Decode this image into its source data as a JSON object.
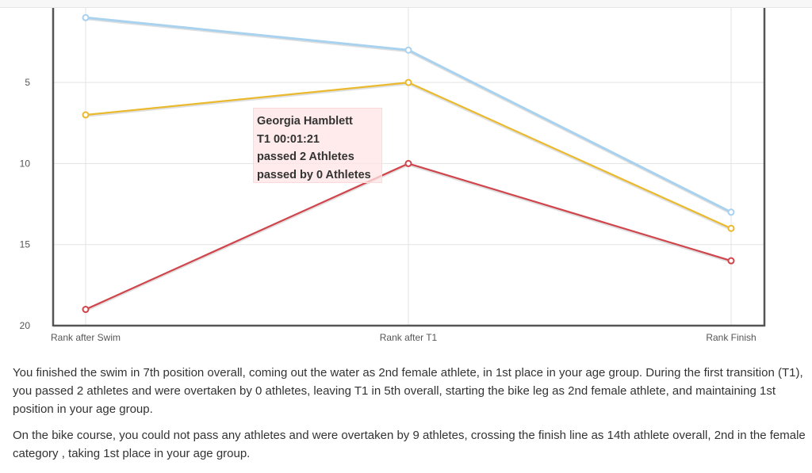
{
  "chart_data": {
    "type": "line",
    "categories": [
      "Rank after Swim",
      "Rank after T1",
      "Rank Finish"
    ],
    "y_ticks": [
      5,
      10,
      15,
      20
    ],
    "ylim": [
      0.4,
      20
    ],
    "y_inverted": true,
    "grid": true,
    "series": [
      {
        "name": "blue",
        "color": "#a9d2ee",
        "values": [
          1,
          3,
          13
        ]
      },
      {
        "name": "yellow",
        "color": "#eab92e",
        "values": [
          7,
          5,
          14
        ]
      },
      {
        "name": "red",
        "color": "#d0454c",
        "values": [
          19,
          10,
          16
        ]
      }
    ],
    "tooltip": {
      "lines": [
        "Georgia Hamblett",
        "T1 00:01:21",
        "passed 2 Athletes",
        "passed by 0 Athletes"
      ]
    }
  },
  "text": {
    "p1": "You finished the swim in 7th position overall, coming out the water as 2nd female athlete, in 1st place in your age group. During the first transition (T1), you passed 2 athletes and were overtaken by 0 athletes, leaving T1 in 5th overall, starting the bike leg as 2nd female athlete, and maintaining 1st position in your age group.",
    "p2": "On the bike course, you could not pass any athletes and were overtaken by 9 athletes, crossing the finish line as 14th athlete overall, 2nd in the female category , taking 1st place in your age group."
  }
}
